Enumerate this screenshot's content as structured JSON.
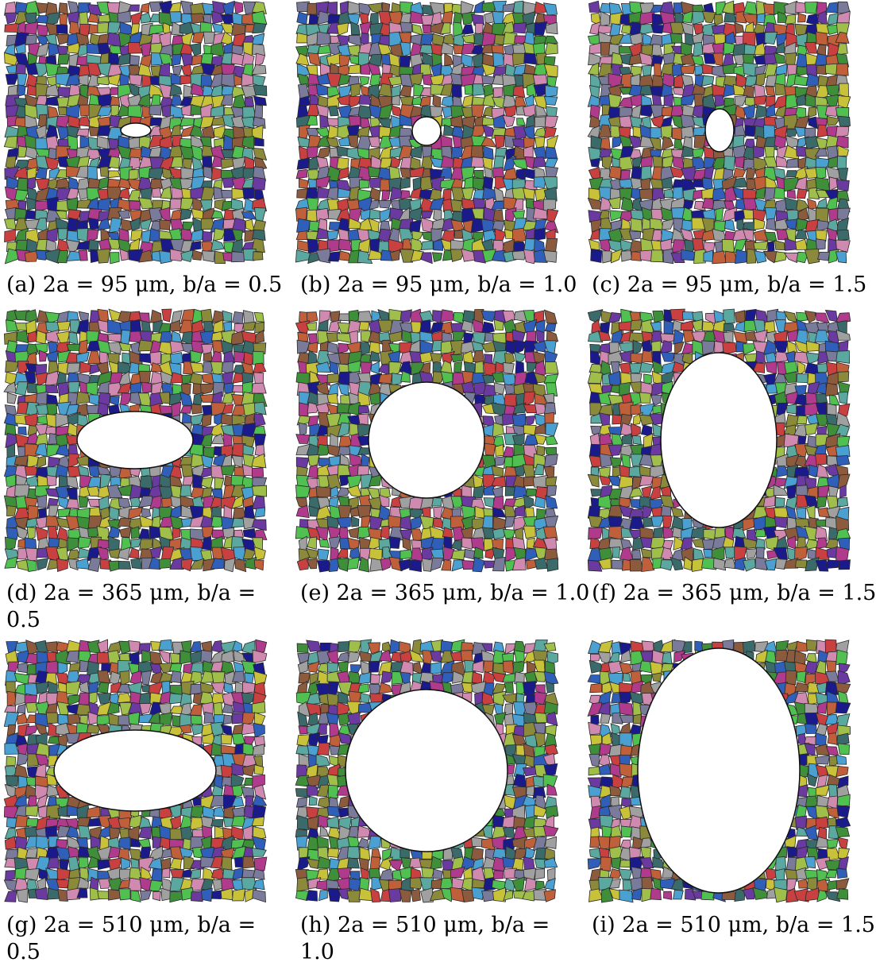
{
  "panels": [
    {
      "caption": "(a) 2a = 95 μm, b/a = 0.5",
      "caption_line2": ""
    },
    {
      "caption": "(b) 2a = 95 μm, b/a = 1.0",
      "caption_line2": ""
    },
    {
      "caption": "(c) 2a = 95 μm, b/a = 1.5",
      "caption_line2": ""
    },
    {
      "caption": "(d) 2a = 365 μm, b/a =",
      "caption_line2": "0.5"
    },
    {
      "caption": "(e) 2a = 365 μm, b/a = 1.0",
      "caption_line2": ""
    },
    {
      "caption": "(f) 2a = 365 μm, b/a = 1.5",
      "caption_line2": ""
    },
    {
      "caption": "(g) 2a = 510 μm, b/a =",
      "caption_line2": "0.5"
    },
    {
      "caption": "(h) 2a = 510 μm, b/a =",
      "caption_line2": "1.0"
    },
    {
      "caption": "(i) 2a = 510 μm, b/a = 1.5",
      "caption_line2": ""
    }
  ],
  "colors": {
    "grain_palette": [
      "#b03a8c",
      "#3f8f3a",
      "#2f5fb8",
      "#c8c23a",
      "#8c5a3c",
      "#5aa8a0",
      "#c0603a",
      "#7a7a9a",
      "#9fbf4a",
      "#6a3aa0",
      "#d08ab0",
      "#3a6a6a",
      "#a0a0a0",
      "#c84040",
      "#4aa0d0",
      "#8a8a3a",
      "#1a1a8a",
      "#50c050"
    ],
    "grain_boundary": "#2a2a2a",
    "hole": "#ffffff"
  }
}
